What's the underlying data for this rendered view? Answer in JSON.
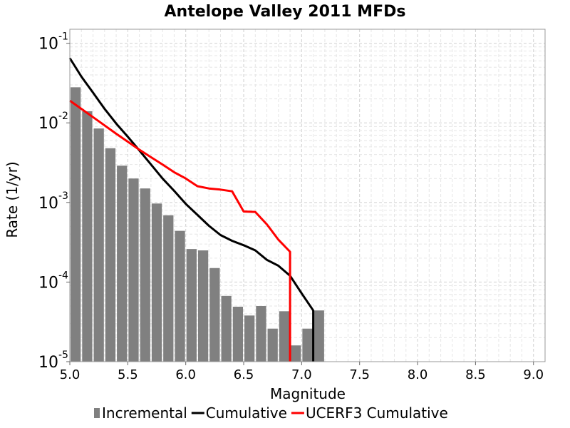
{
  "chart_data": {
    "type": "bar",
    "title": "Antelope Valley 2011 MFDs",
    "xlabel": "Magnitude",
    "ylabel": "Rate (1/yr)",
    "xlim": [
      5.0,
      9.1
    ],
    "ylim": [
      1e-05,
      0.15
    ],
    "yscale": "log",
    "grid": true,
    "legend_position": "bottom",
    "x_ticks": [
      "5.0",
      "5.5",
      "6.0",
      "6.5",
      "7.0",
      "7.5",
      "8.0",
      "8.5",
      "9.0"
    ],
    "y_ticks": [
      {
        "base": "10",
        "exp": "-5"
      },
      {
        "base": "10",
        "exp": "-4"
      },
      {
        "base": "10",
        "exp": "-3"
      },
      {
        "base": "10",
        "exp": "-2"
      },
      {
        "base": "10",
        "exp": "-1"
      }
    ],
    "series": [
      {
        "name": "Incremental",
        "type": "bar",
        "color": "#808080",
        "x": [
          5.05,
          5.15,
          5.25,
          5.35,
          5.45,
          5.55,
          5.65,
          5.75,
          5.85,
          5.95,
          6.05,
          6.15,
          6.25,
          6.35,
          6.45,
          6.55,
          6.65,
          6.75,
          6.85,
          6.95,
          7.05,
          7.15
        ],
        "y": [
          0.028,
          0.014,
          0.0085,
          0.0048,
          0.0029,
          0.002,
          0.0015,
          0.00097,
          0.00069,
          0.00044,
          0.00026,
          0.00025,
          0.00015,
          6.7e-05,
          4.9e-05,
          3.8e-05,
          5e-05,
          2.6e-05,
          4.3e-05,
          1.6e-05,
          2.6e-05,
          4.4e-05
        ]
      },
      {
        "name": "Cumulative",
        "type": "line",
        "color": "#000000",
        "x": [
          5.0,
          5.1,
          5.2,
          5.3,
          5.4,
          5.5,
          5.6,
          5.7,
          5.8,
          5.9,
          6.0,
          6.1,
          6.2,
          6.3,
          6.4,
          6.5,
          6.6,
          6.7,
          6.8,
          6.9,
          7.0,
          7.1,
          7.1
        ],
        "y": [
          0.065,
          0.038,
          0.024,
          0.015,
          0.0098,
          0.0067,
          0.0045,
          0.003,
          0.002,
          0.0014,
          0.00096,
          0.0007,
          0.00051,
          0.00039,
          0.00033,
          0.00029,
          0.00025,
          0.00019,
          0.00016,
          0.00012,
          7.2e-05,
          4.4e-05,
          1e-05
        ]
      },
      {
        "name": "UCERF3 Cumulative",
        "type": "line",
        "color": "#ff0000",
        "x": [
          5.0,
          5.1,
          5.2,
          5.3,
          5.4,
          5.5,
          5.6,
          5.7,
          5.8,
          5.9,
          6.0,
          6.1,
          6.2,
          6.3,
          6.4,
          6.5,
          6.6,
          6.7,
          6.8,
          6.9,
          6.9
        ],
        "y": [
          0.019,
          0.015,
          0.0118,
          0.0093,
          0.0073,
          0.0058,
          0.0046,
          0.0037,
          0.003,
          0.0024,
          0.002,
          0.0016,
          0.0015,
          0.00145,
          0.00138,
          0.00077,
          0.00076,
          0.00053,
          0.00034,
          0.00024,
          1e-05
        ]
      }
    ]
  }
}
